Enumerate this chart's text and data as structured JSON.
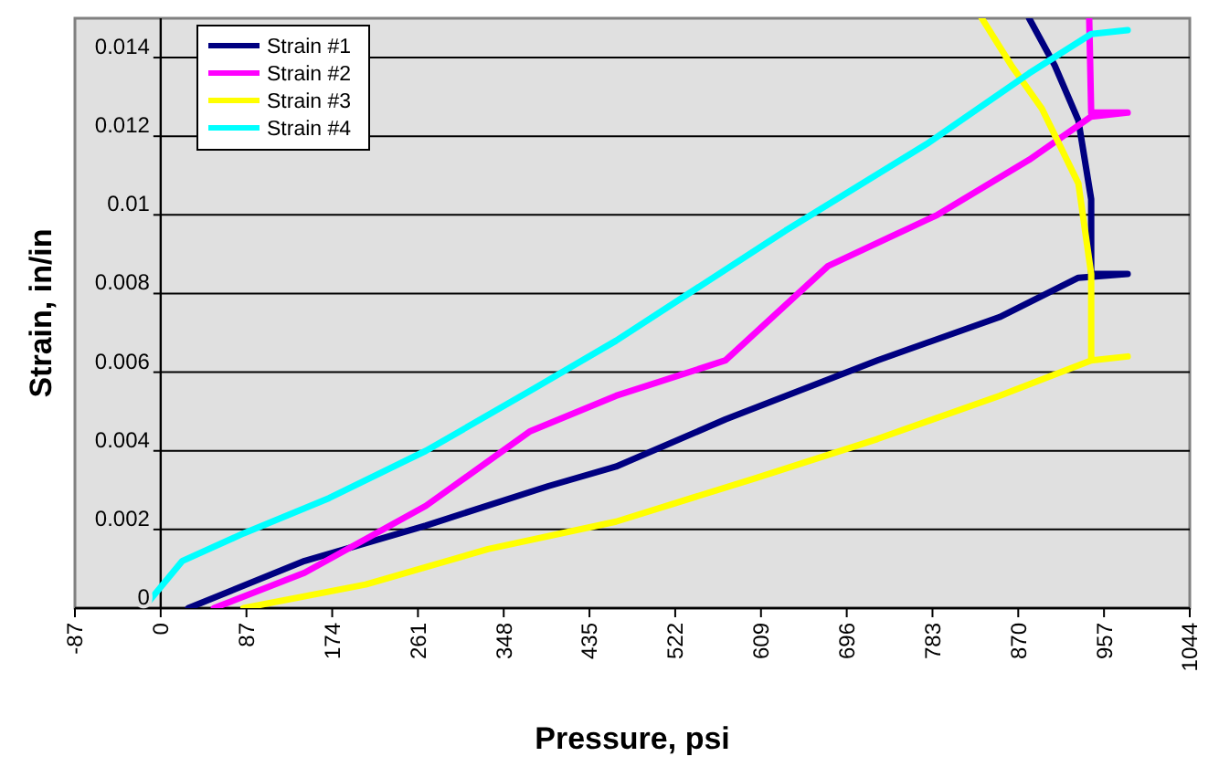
{
  "chart_data": {
    "type": "line",
    "xlabel": "Pressure, psi",
    "ylabel": "Strain, in/in",
    "xlim": [
      -87,
      1044
    ],
    "xticks": [
      -87,
      0,
      87,
      174,
      261,
      348,
      435,
      522,
      609,
      696,
      783,
      870,
      957,
      1044
    ],
    "ylim": [
      0,
      0.015
    ],
    "yticks": [
      0,
      0.002,
      0.004,
      0.006,
      0.008,
      0.01,
      0.012,
      0.014
    ],
    "grid": "y",
    "legend": "top left",
    "marker": "none",
    "line_style": "solid",
    "series": [
      {
        "name": "Strain #1",
        "color": "#000080",
        "x": [
          28,
          146,
          269,
          393,
          462,
          573,
          727,
          851,
          931,
          981,
          944,
          944,
          931,
          907,
          881
        ],
        "values": [
          0,
          0.0012,
          0.0021,
          0.0031,
          0.0036,
          0.0048,
          0.0063,
          0.0074,
          0.0084,
          0.0085,
          0.0085,
          0.0104,
          0.0124,
          0.0138,
          0.015
        ]
      },
      {
        "name": "Strain #2",
        "color": "#ff00ff",
        "x": [
          54,
          146,
          269,
          375,
          462,
          573,
          677,
          788,
          881,
          944,
          981,
          944,
          942
        ],
        "values": [
          0,
          0.0009,
          0.0026,
          0.0045,
          0.0054,
          0.0063,
          0.0087,
          0.01,
          0.0114,
          0.0125,
          0.0126,
          0.0126,
          0.015
        ]
      },
      {
        "name": "Strain #3",
        "color": "#ffff00",
        "x": [
          84,
          208,
          332,
          462,
          603,
          727,
          851,
          944,
          981,
          944,
          944,
          931,
          894,
          863,
          833
        ],
        "values": [
          0,
          0.0006,
          0.0015,
          0.0022,
          0.0033,
          0.0043,
          0.0054,
          0.0063,
          0.0064,
          0.0063,
          0.0085,
          0.0108,
          0.0127,
          0.0138,
          0.015
        ]
      },
      {
        "name": "Strain #4",
        "color": "#00ffff",
        "x": [
          -11,
          22,
          84,
          171,
          269,
          380,
          462,
          634,
          777,
          881,
          944,
          981
        ],
        "values": [
          0.0002,
          0.0012,
          0.0019,
          0.0028,
          0.004,
          0.0056,
          0.0068,
          0.0096,
          0.0118,
          0.0136,
          0.0146,
          0.0147
        ]
      }
    ]
  }
}
